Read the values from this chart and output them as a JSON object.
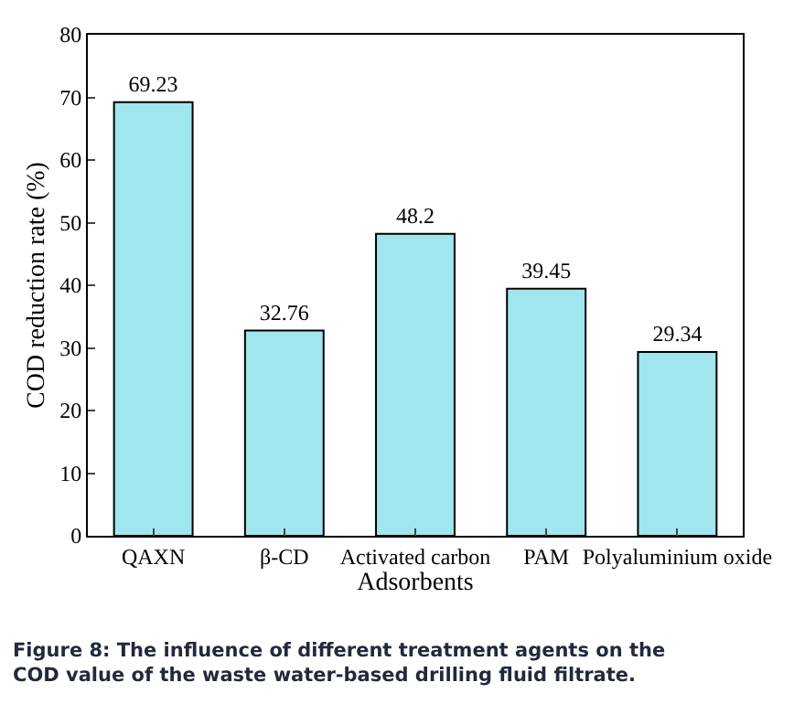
{
  "chart_data": {
    "type": "bar",
    "categories": [
      "QAXN",
      "β-CD",
      "Activated carbon",
      "PAM",
      "Polyaluminium oxide"
    ],
    "values": [
      69.23,
      32.76,
      48.2,
      39.45,
      29.34
    ],
    "color": "#9fe6ee",
    "data_labels": true,
    "xlabel": "Adsorbents",
    "ylabel": "COD reduction rate (%)",
    "ylim": [
      0,
      80
    ],
    "yticks": [
      0,
      10,
      20,
      30,
      40,
      50,
      60,
      70,
      80
    ],
    "annotations": [
      "Figure 8: The influence of different treatment agents on the COD value of the waste water-based drilling fluid filtrate."
    ]
  }
}
